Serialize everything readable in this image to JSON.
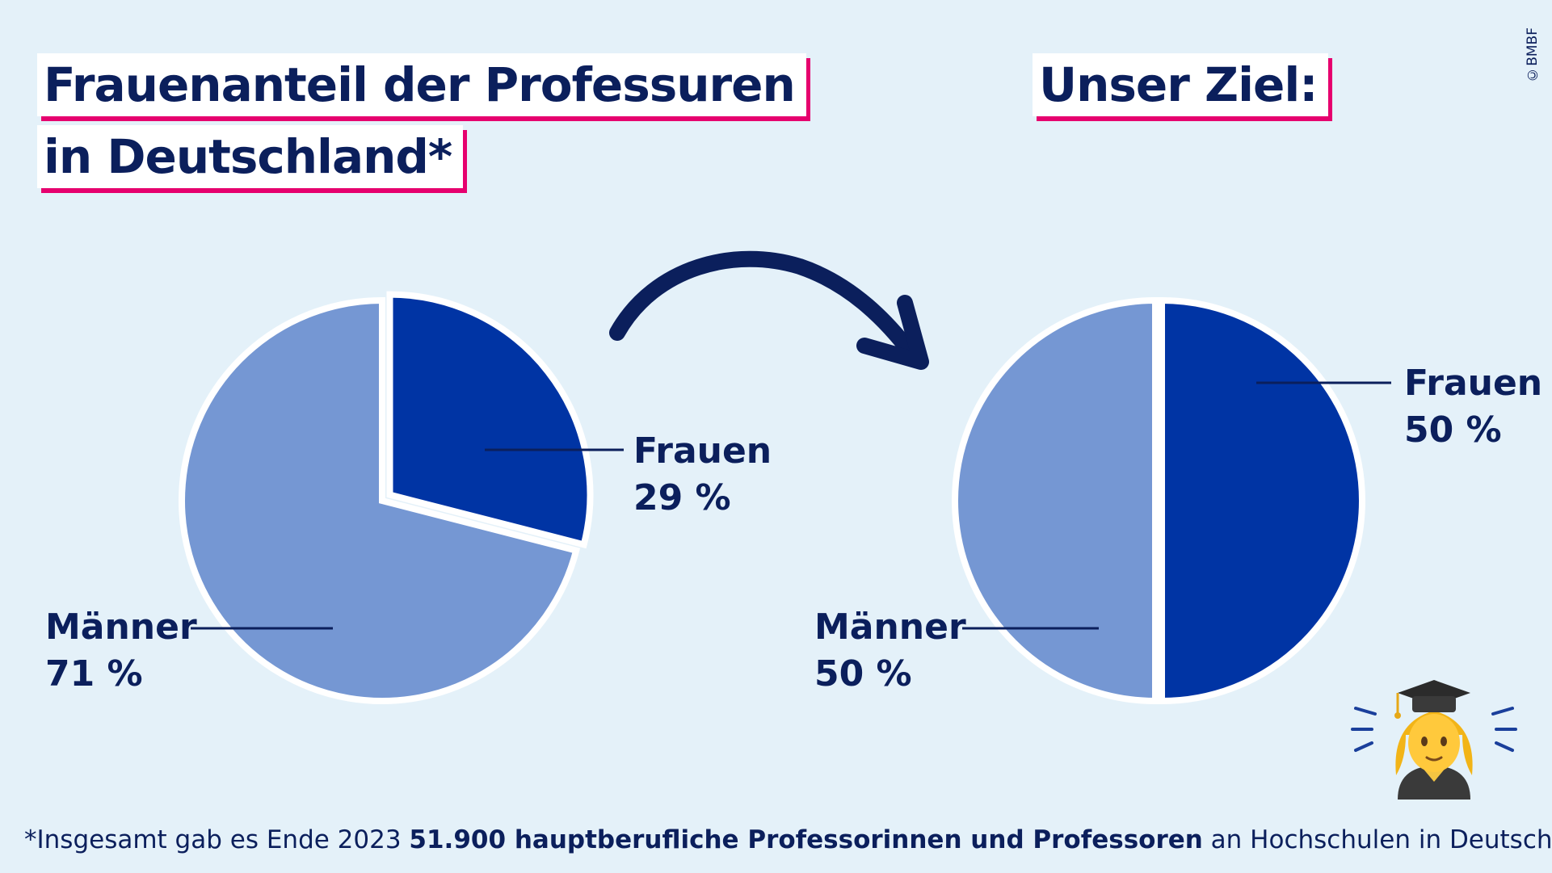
{
  "title": {
    "line1": "Frauenanteil der Professuren",
    "line2": "in Deutschland*"
  },
  "goal_title": "Unser Ziel:",
  "copyright": "©BMBF",
  "colors": {
    "frauen": "#0034a4",
    "maenner": "#7597d3",
    "text": "#0b1f5c",
    "accent": "#e6006e",
    "background": "#e4f1f9"
  },
  "chart_data": [
    {
      "type": "pie",
      "title": "Frauenanteil der Professuren in Deutschland*",
      "slices": [
        {
          "label": "Frauen",
          "value": 29,
          "display": "29 %",
          "color": "#0034a4",
          "exploded": true
        },
        {
          "label": "Männer",
          "value": 71,
          "display": "71 %",
          "color": "#7597d3"
        }
      ]
    },
    {
      "type": "pie",
      "title": "Unser Ziel:",
      "slices": [
        {
          "label": "Frauen",
          "value": 50,
          "display": "50 %",
          "color": "#0034a4",
          "exploded": true
        },
        {
          "label": "Männer",
          "value": 50,
          "display": "50 %",
          "color": "#7597d3"
        }
      ]
    }
  ],
  "footnote": {
    "prefix": "*Insgesamt gab es Ende 2023 ",
    "bold": "51.900 hauptberufliche Professorinnen und Professoren",
    "suffix": " an Hochschulen in Deutschland."
  },
  "icons": {
    "arrow": "curved-arrow-icon",
    "graduate": "woman-graduate-icon"
  }
}
